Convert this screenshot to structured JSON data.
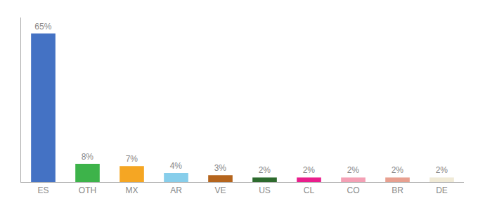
{
  "chart_data": {
    "type": "bar",
    "categories": [
      "ES",
      "OTH",
      "MX",
      "AR",
      "VE",
      "US",
      "CL",
      "CO",
      "BR",
      "DE"
    ],
    "values": [
      65,
      8,
      7,
      4,
      3,
      2,
      2,
      2,
      2,
      2
    ],
    "value_labels": [
      "65%",
      "8%",
      "7%",
      "4%",
      "3%",
      "2%",
      "2%",
      "2%",
      "2%",
      "2%"
    ],
    "colors": [
      "#4472c4",
      "#3db34a",
      "#f5a623",
      "#87ceeb",
      "#b5651d",
      "#2d6a2d",
      "#e91e8c",
      "#f4a0b5",
      "#e8a090",
      "#f0ead6"
    ],
    "ylim": [
      0,
      72
    ],
    "grid": false,
    "data_labels": true,
    "tick_labels": "x"
  }
}
